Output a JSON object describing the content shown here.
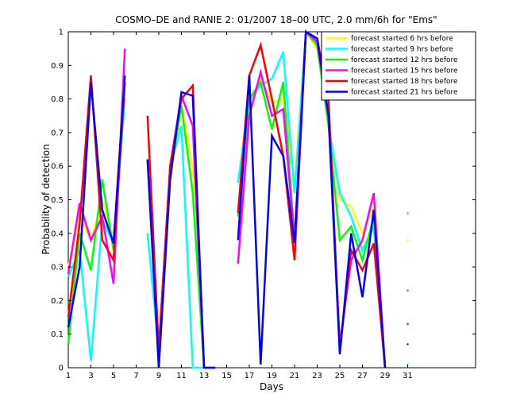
{
  "chart_data": {
    "type": "line",
    "title": "COSMO–DE and RANIE 2: 01/2007 18–00 UTC, 2.0 mm/6h for \"Ems\"",
    "xlabel": "Days",
    "ylabel": "Probability of detection",
    "xlim": [
      1,
      37
    ],
    "ylim": [
      0,
      1
    ],
    "xticks": [
      1,
      3,
      5,
      7,
      9,
      11,
      13,
      15,
      17,
      19,
      21,
      23,
      25,
      27,
      29,
      31
    ],
    "yticks": [
      0,
      0.1,
      0.2,
      0.3,
      0.4,
      0.5,
      0.6,
      0.7,
      0.8,
      0.9,
      1
    ],
    "grid": false,
    "legend_position": "top-right",
    "series": [
      {
        "name": "forecast started 6 hrs before",
        "color": "#ffff00",
        "values": [
          [
            1,
            0.3
          ],
          [
            2,
            0.45
          ],
          [
            3,
            0.38
          ],
          [
            4,
            0.5
          ],
          [
            5,
            0.38
          ],
          [
            6,
            0.82
          ],
          null,
          [
            8,
            0.4
          ],
          [
            9,
            0.05
          ],
          [
            10,
            0.55
          ],
          [
            11,
            0.78
          ],
          [
            12,
            0.6
          ],
          [
            13,
            0.0
          ],
          [
            14,
            0.0
          ],
          null,
          [
            16,
            0.55
          ],
          [
            17,
            0.78
          ],
          [
            18,
            0.86
          ],
          [
            19,
            0.79
          ],
          [
            20,
            0.8
          ],
          [
            21,
            0.55
          ],
          [
            22,
            1.0
          ],
          [
            23,
            0.95
          ],
          [
            24,
            0.73
          ],
          [
            25,
            0.5
          ],
          [
            26,
            0.48
          ],
          [
            27,
            0.4
          ],
          [
            28,
            0.48
          ],
          [
            29,
            0.0
          ],
          null,
          [
            31,
            0.38
          ]
        ]
      },
      {
        "name": "forecast started 9 hrs before",
        "color": "#00ffff",
        "values": [
          [
            1,
            0.27
          ],
          [
            2,
            0.35
          ],
          [
            3,
            0.02
          ],
          [
            4,
            0.44
          ],
          [
            5,
            0.37
          ],
          [
            6,
            0.8
          ],
          null,
          [
            8,
            0.4
          ],
          [
            9,
            0.05
          ],
          [
            10,
            0.6
          ],
          [
            11,
            0.72
          ],
          [
            12,
            0.0
          ],
          [
            13,
            0.0
          ],
          [
            14,
            0.0
          ],
          null,
          [
            16,
            0.55
          ],
          [
            17,
            0.8
          ],
          [
            18,
            0.84
          ],
          [
            19,
            0.86
          ],
          [
            20,
            0.94
          ],
          [
            21,
            0.52
          ],
          [
            22,
            1.0
          ],
          [
            23,
            0.96
          ],
          [
            24,
            0.72
          ],
          [
            25,
            0.52
          ],
          [
            26,
            0.45
          ],
          [
            27,
            0.35
          ],
          [
            28,
            0.42
          ],
          [
            29,
            0.0
          ],
          null,
          [
            31,
            0.01
          ]
        ]
      },
      {
        "name": "forecast started 12 hrs before",
        "color": "#00ff00",
        "values": [
          [
            1,
            0.07
          ],
          [
            2,
            0.4
          ],
          [
            3,
            0.29
          ],
          [
            4,
            0.56
          ],
          [
            5,
            0.35
          ],
          [
            6,
            0.85
          ],
          null,
          [
            8,
            0.62
          ],
          [
            9,
            0.06
          ],
          [
            10,
            0.58
          ],
          [
            11,
            0.78
          ],
          [
            12,
            0.52
          ],
          [
            13,
            0.0
          ],
          null,
          [
            16,
            0.45
          ],
          [
            17,
            0.8
          ],
          [
            18,
            0.85
          ],
          [
            19,
            0.71
          ],
          [
            20,
            0.85
          ],
          [
            21,
            0.38
          ],
          [
            22,
            1.0
          ],
          [
            23,
            0.96
          ],
          [
            24,
            0.72
          ],
          [
            25,
            0.38
          ],
          [
            26,
            0.42
          ],
          [
            27,
            0.32
          ],
          [
            28,
            0.45
          ],
          [
            29,
            0.0
          ],
          null,
          [
            31,
            0.46
          ]
        ]
      },
      {
        "name": "forecast started 15 hrs before",
        "color": "#ff00ff",
        "values": [
          [
            1,
            0.28
          ],
          [
            2,
            0.49
          ],
          [
            3,
            0.38
          ],
          [
            4,
            0.45
          ],
          [
            5,
            0.25
          ],
          [
            6,
            0.95
          ],
          null,
          [
            8,
            0.62
          ],
          [
            9,
            0.05
          ],
          [
            10,
            0.6
          ],
          [
            11,
            0.81
          ],
          [
            12,
            0.72
          ],
          [
            13,
            0.0
          ],
          null,
          [
            16,
            0.31
          ],
          [
            17,
            0.75
          ],
          [
            18,
            0.88
          ],
          [
            19,
            0.75
          ],
          [
            20,
            0.77
          ],
          [
            21,
            0.38
          ],
          [
            22,
            1.0
          ],
          [
            23,
            0.97
          ],
          [
            24,
            0.75
          ],
          [
            25,
            0.07
          ],
          [
            26,
            0.32
          ],
          [
            27,
            0.38
          ],
          [
            28,
            0.52
          ],
          [
            29,
            0.0
          ],
          null,
          [
            31,
            0.23
          ]
        ]
      },
      {
        "name": "forecast started 18 hrs before",
        "color": "#ff0000",
        "values": [
          [
            1,
            0.15
          ],
          [
            2,
            0.43
          ],
          [
            3,
            0.87
          ],
          [
            4,
            0.38
          ],
          [
            5,
            0.32
          ],
          [
            6,
            0.85
          ],
          null,
          [
            8,
            0.75
          ],
          [
            9,
            0.05
          ],
          [
            10,
            0.6
          ],
          [
            11,
            0.8
          ],
          [
            12,
            0.84
          ],
          [
            13,
            0.0
          ],
          null,
          [
            16,
            0.46
          ],
          [
            17,
            0.87
          ],
          [
            18,
            0.96
          ],
          [
            19,
            0.8
          ],
          [
            20,
            0.63
          ],
          [
            21,
            0.32
          ],
          [
            22,
            1.0
          ],
          [
            23,
            0.98
          ],
          [
            24,
            0.8
          ],
          [
            25,
            0.05
          ],
          [
            26,
            0.35
          ],
          [
            27,
            0.29
          ],
          [
            28,
            0.37
          ],
          [
            29,
            0.0
          ],
          null,
          [
            31,
            0.13
          ]
        ]
      },
      {
        "name": "forecast started 21 hrs before",
        "color": "#0000ff",
        "values": [
          [
            1,
            0.12
          ],
          [
            2,
            0.3
          ],
          [
            3,
            0.85
          ],
          [
            4,
            0.47
          ],
          [
            5,
            0.37
          ],
          [
            6,
            0.87
          ],
          null,
          [
            8,
            0.62
          ],
          [
            9,
            0.0
          ],
          [
            10,
            0.56
          ],
          [
            11,
            0.82
          ],
          [
            12,
            0.81
          ],
          [
            13,
            0.0
          ],
          [
            14,
            0.0
          ],
          null,
          [
            16,
            0.38
          ],
          [
            17,
            0.87
          ],
          [
            18,
            0.01
          ],
          [
            19,
            0.69
          ],
          [
            20,
            0.63
          ],
          [
            21,
            0.37
          ],
          [
            22,
            1.0
          ],
          [
            23,
            0.98
          ],
          [
            24,
            0.75
          ],
          [
            25,
            0.04
          ],
          [
            26,
            0.4
          ],
          [
            27,
            0.21
          ],
          [
            28,
            0.47
          ],
          [
            29,
            0.0
          ],
          null,
          [
            31,
            0.07
          ]
        ]
      }
    ]
  }
}
